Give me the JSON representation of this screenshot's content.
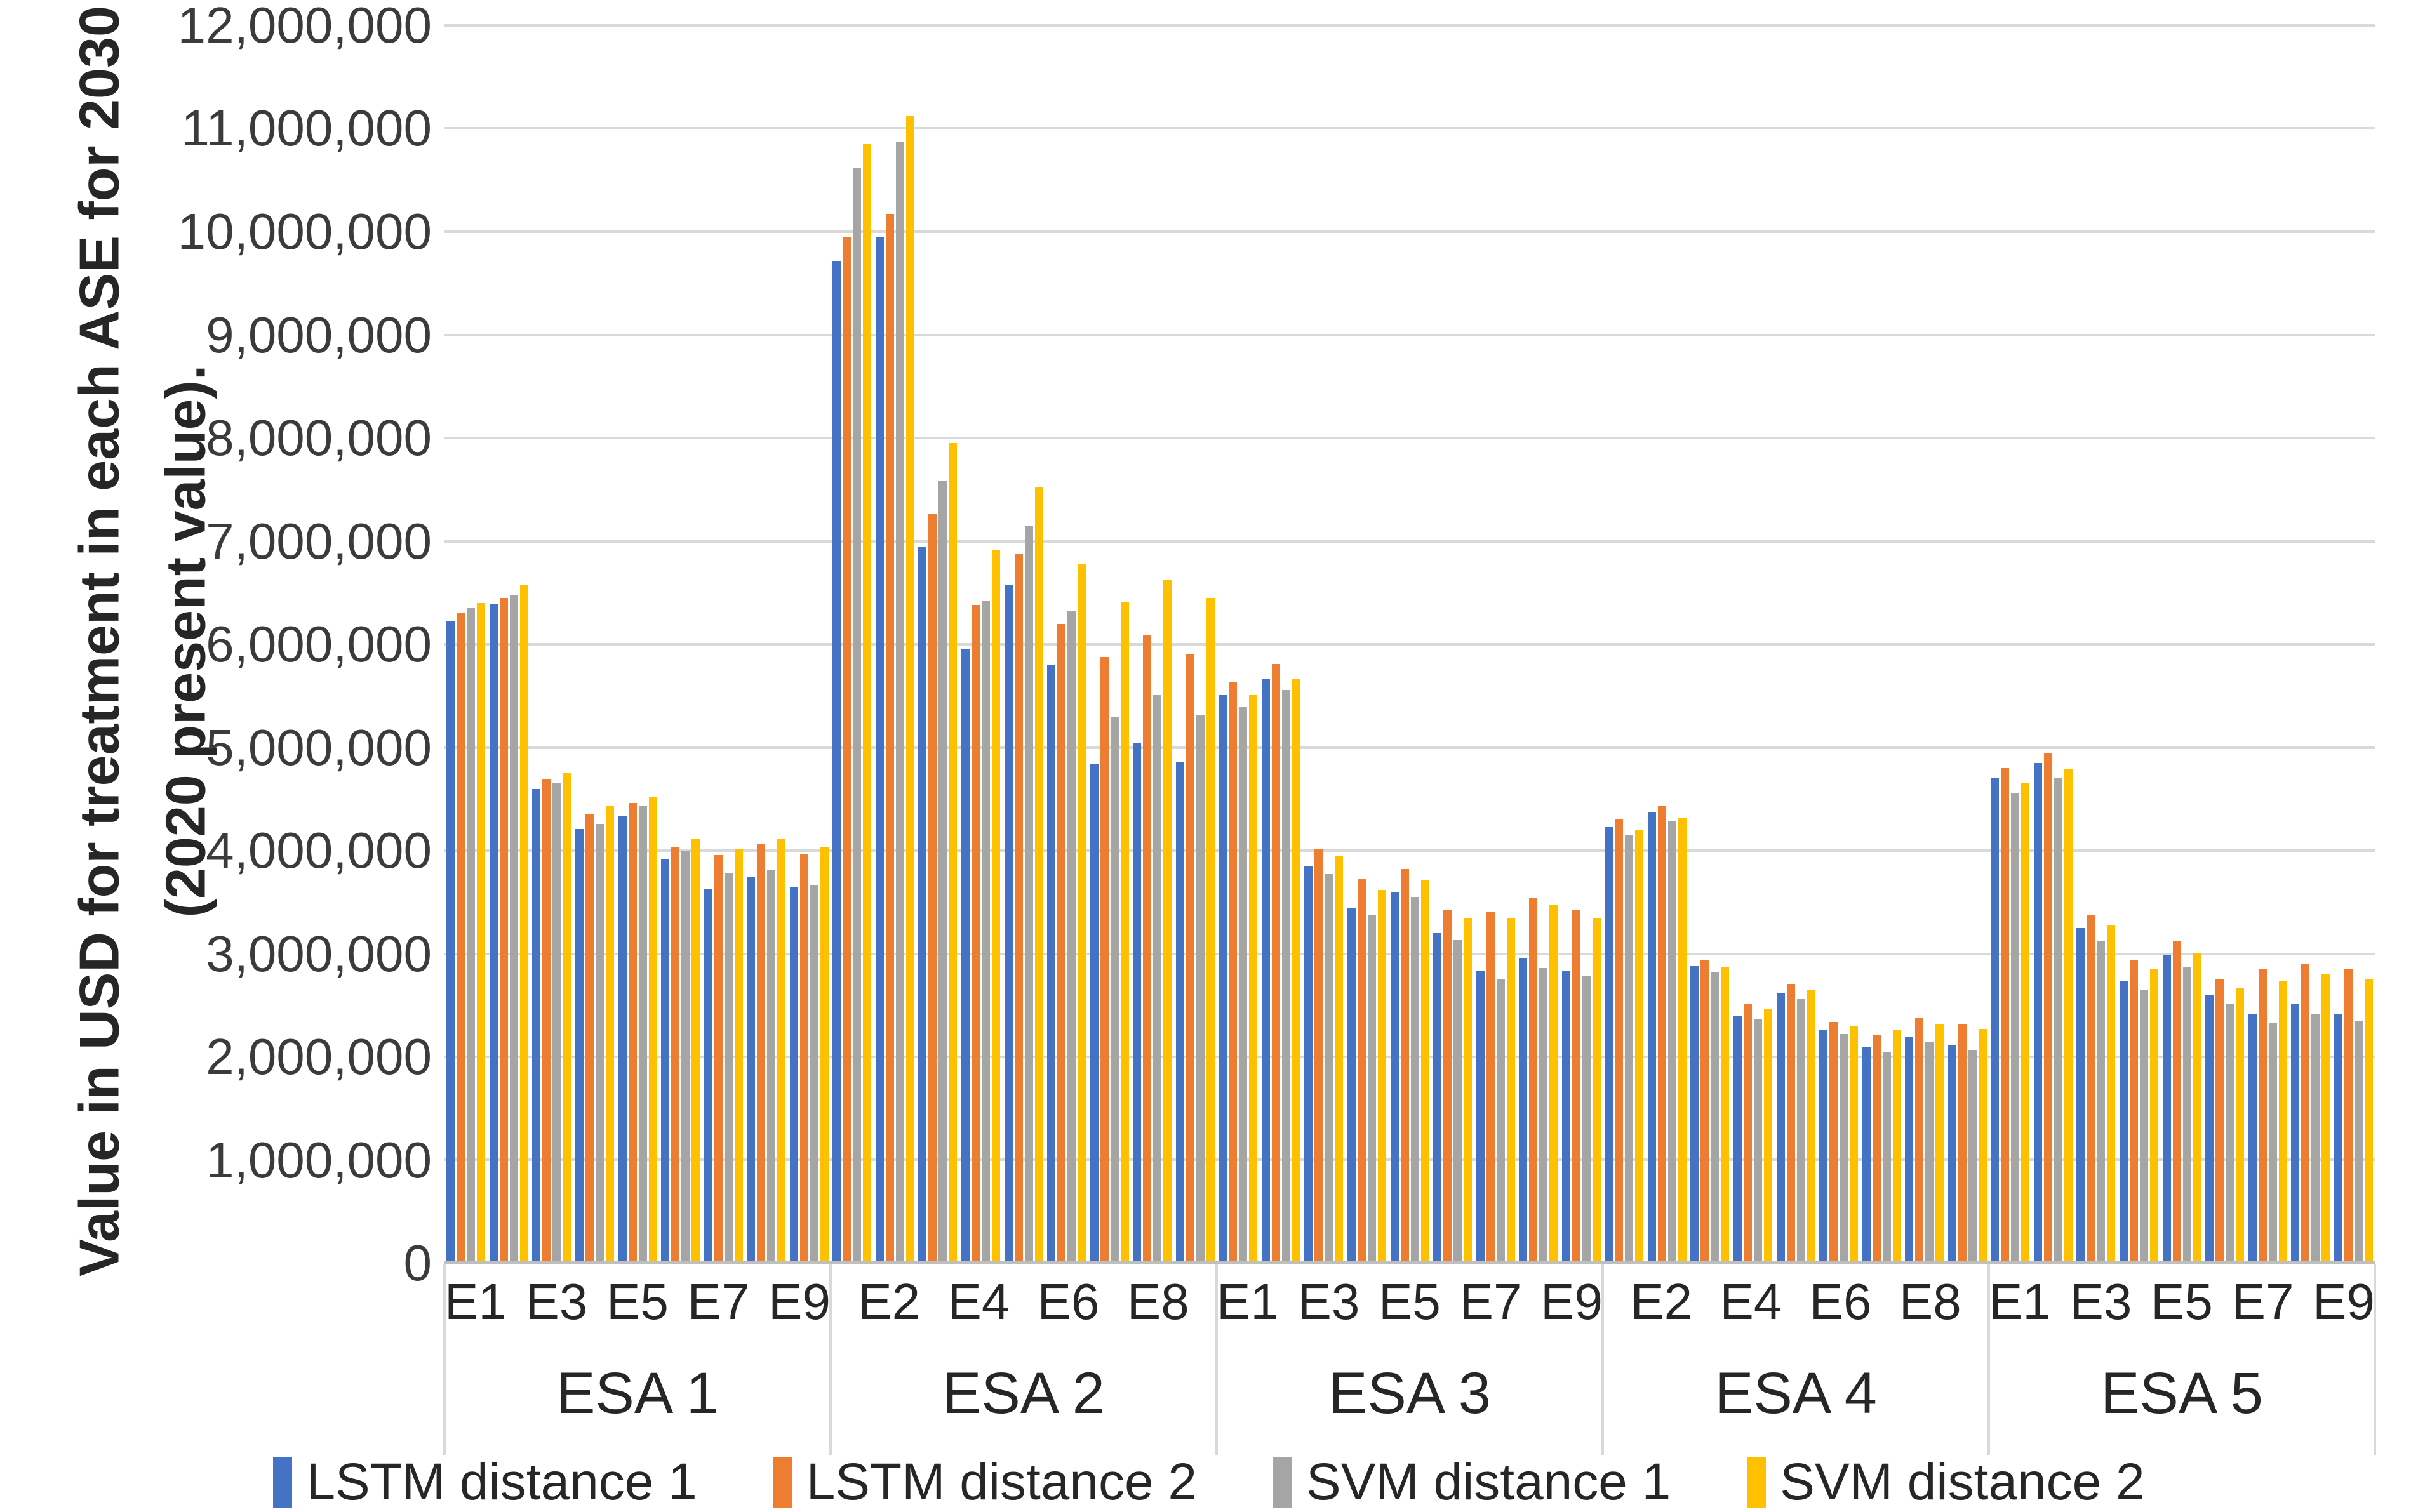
{
  "y_axis": {
    "title_line1": "Value in USD for treatment in each ASE for 2030",
    "title_line2": "(2020 present value).",
    "tick_labels": [
      "0",
      "1,000,000",
      "2,000,000",
      "3,000,000",
      "4,000,000",
      "5,000,000",
      "6,000,000",
      "7,000,000",
      "8,000,000",
      "9,000,000",
      "10,000,000",
      "11,000,000",
      "12,000,000"
    ]
  },
  "legend": [
    {
      "label": "LSTM distance 1",
      "color": "#4472C4"
    },
    {
      "label": "LSTM distance 2",
      "color": "#ED7D31"
    },
    {
      "label": "SVM distance 1",
      "color": "#A5A5A5"
    },
    {
      "label": "SVM distance 2",
      "color": "#FFC000"
    }
  ],
  "chart_data": {
    "type": "bar",
    "title": "",
    "xlabel": "",
    "ylabel": "Value in USD for treatment in each ASE for 2030 (2020 present value).",
    "ylim": [
      0,
      12000000
    ],
    "ytick_step": 1000000,
    "grid": true,
    "legend_position": "bottom",
    "series_names": [
      "LSTM distance 1",
      "LSTM distance 2",
      "SVM distance 1",
      "SVM distance 2"
    ],
    "series_colors": [
      "#4472C4",
      "#ED7D31",
      "#A5A5A5",
      "#FFC000"
    ],
    "groups": [
      {
        "name": "ESA 1",
        "categories": [
          "E1",
          "E2",
          "E3",
          "E4",
          "E5",
          "E6",
          "E7",
          "E8",
          "E9"
        ],
        "shown_label_indices": [
          0,
          2,
          4,
          6,
          8
        ],
        "values": [
          [
            6230000,
            6310000,
            6350000,
            6400000
          ],
          [
            6390000,
            6450000,
            6480000,
            6570000
          ],
          [
            4600000,
            4690000,
            4650000,
            4760000
          ],
          [
            4210000,
            4350000,
            4260000,
            4430000
          ],
          [
            4340000,
            4460000,
            4430000,
            4520000
          ],
          [
            3920000,
            4040000,
            4000000,
            4120000
          ],
          [
            3630000,
            3960000,
            3780000,
            4020000
          ],
          [
            3750000,
            4060000,
            3810000,
            4120000
          ],
          [
            3650000,
            3970000,
            3670000,
            4040000
          ]
        ]
      },
      {
        "name": "ESA 2",
        "categories": [
          "E1",
          "E2",
          "E3",
          "E4",
          "E5",
          "E6",
          "E7",
          "E8",
          "E9"
        ],
        "shown_label_indices": [
          1,
          3,
          5,
          7
        ],
        "values": [
          [
            9720000,
            9950000,
            10620000,
            10850000
          ],
          [
            9950000,
            10170000,
            10870000,
            11120000
          ],
          [
            6940000,
            7270000,
            7590000,
            7950000
          ],
          [
            5950000,
            6380000,
            6420000,
            6920000
          ],
          [
            6580000,
            6880000,
            7150000,
            7520000
          ],
          [
            5800000,
            6200000,
            6320000,
            6780000
          ],
          [
            4840000,
            5880000,
            5290000,
            6410000
          ],
          [
            5040000,
            6090000,
            5510000,
            6620000
          ],
          [
            4860000,
            5900000,
            5310000,
            6450000
          ]
        ]
      },
      {
        "name": "ESA 3",
        "categories": [
          "E1",
          "E2",
          "E3",
          "E4",
          "E5",
          "E6",
          "E7",
          "E8",
          "E9"
        ],
        "shown_label_indices": [
          0,
          2,
          4,
          6,
          8
        ],
        "values": [
          [
            5510000,
            5640000,
            5390000,
            5510000
          ],
          [
            5660000,
            5810000,
            5560000,
            5660000
          ],
          [
            3850000,
            4010000,
            3770000,
            3950000
          ],
          [
            3440000,
            3730000,
            3380000,
            3620000
          ],
          [
            3600000,
            3820000,
            3550000,
            3720000
          ],
          [
            3200000,
            3420000,
            3130000,
            3350000
          ],
          [
            2830000,
            3410000,
            2750000,
            3340000
          ],
          [
            2960000,
            3540000,
            2860000,
            3470000
          ],
          [
            2830000,
            3430000,
            2780000,
            3350000
          ]
        ]
      },
      {
        "name": "ESA 4",
        "categories": [
          "E1",
          "E2",
          "E3",
          "E4",
          "E5",
          "E6",
          "E7",
          "E8",
          "E9"
        ],
        "shown_label_indices": [
          1,
          3,
          5,
          7
        ],
        "values": [
          [
            4230000,
            4300000,
            4150000,
            4200000
          ],
          [
            4370000,
            4440000,
            4290000,
            4320000
          ],
          [
            2880000,
            2940000,
            2820000,
            2870000
          ],
          [
            2400000,
            2510000,
            2370000,
            2460000
          ],
          [
            2620000,
            2710000,
            2560000,
            2650000
          ],
          [
            2260000,
            2340000,
            2220000,
            2300000
          ],
          [
            2100000,
            2210000,
            2050000,
            2260000
          ],
          [
            2190000,
            2380000,
            2140000,
            2320000
          ],
          [
            2120000,
            2320000,
            2070000,
            2270000
          ]
        ]
      },
      {
        "name": "ESA 5",
        "categories": [
          "E1",
          "E2",
          "E3",
          "E4",
          "E5",
          "E6",
          "E7",
          "E8",
          "E9"
        ],
        "shown_label_indices": [
          0,
          2,
          4,
          6,
          8
        ],
        "values": [
          [
            4710000,
            4800000,
            4560000,
            4650000
          ],
          [
            4850000,
            4940000,
            4700000,
            4790000
          ],
          [
            3250000,
            3370000,
            3120000,
            3280000
          ],
          [
            2730000,
            2940000,
            2650000,
            2850000
          ],
          [
            2990000,
            3120000,
            2870000,
            3010000
          ],
          [
            2600000,
            2750000,
            2510000,
            2670000
          ],
          [
            2420000,
            2850000,
            2330000,
            2730000
          ],
          [
            2520000,
            2900000,
            2420000,
            2800000
          ],
          [
            2420000,
            2850000,
            2350000,
            2760000
          ]
        ]
      }
    ]
  }
}
